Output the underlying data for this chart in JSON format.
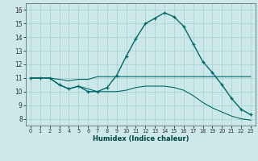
{
  "title": "",
  "xlabel": "Humidex (Indice chaleur)",
  "xlim": [
    -0.5,
    23.5
  ],
  "ylim": [
    7.5,
    16.5
  ],
  "yticks": [
    8,
    9,
    10,
    11,
    12,
    13,
    14,
    15,
    16
  ],
  "xticks": [
    0,
    1,
    2,
    3,
    4,
    5,
    6,
    7,
    8,
    9,
    10,
    11,
    12,
    13,
    14,
    15,
    16,
    17,
    18,
    19,
    20,
    21,
    22,
    23
  ],
  "bg_color": "#cce8e8",
  "grid_color": "#aad4d4",
  "line_color": "#006868",
  "series_main": [
    11.0,
    11.0,
    11.0,
    10.5,
    10.2,
    10.4,
    10.0,
    10.0,
    10.3,
    11.2,
    12.6,
    13.9,
    15.0,
    15.4,
    15.8,
    15.5,
    14.8,
    13.5,
    12.2,
    11.4,
    10.5,
    9.5,
    8.7,
    8.3
  ],
  "series_upper": [
    11.0,
    11.0,
    11.0,
    10.9,
    10.8,
    10.9,
    10.9,
    11.1,
    11.1,
    11.1,
    11.1,
    11.1,
    11.1,
    11.1,
    11.1,
    11.1,
    11.1,
    11.1,
    11.1,
    11.1,
    11.1,
    11.1,
    11.1,
    11.1
  ],
  "series_lower": [
    11.0,
    11.0,
    11.0,
    10.5,
    10.2,
    10.4,
    10.2,
    10.0,
    10.0,
    10.0,
    10.1,
    10.3,
    10.4,
    10.4,
    10.4,
    10.3,
    10.1,
    9.7,
    9.2,
    8.8,
    8.5,
    8.2,
    8.0,
    7.9
  ]
}
